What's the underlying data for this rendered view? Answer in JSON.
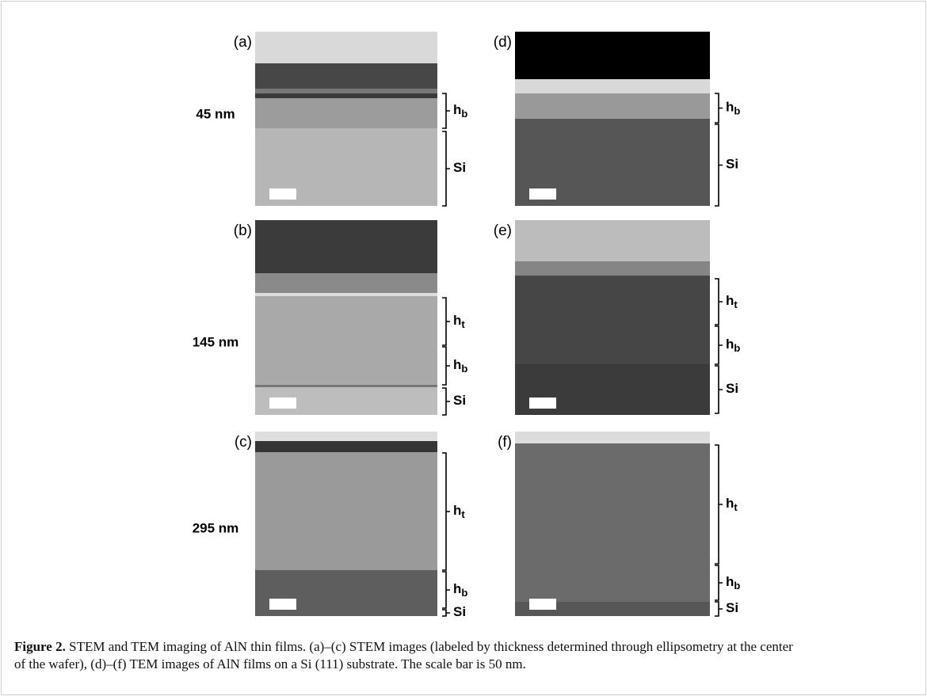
{
  "figure": {
    "panels": [
      {
        "label": "(a)",
        "thickness": "45 nm",
        "layers": [
          {
            "name": "h",
            "sub": "b"
          },
          {
            "name": "Si"
          }
        ]
      },
      {
        "label": "(b)",
        "thickness": "145 nm",
        "layers": [
          {
            "name": "h",
            "sub": "t"
          },
          {
            "name": "h",
            "sub": "b"
          },
          {
            "name": "Si"
          }
        ]
      },
      {
        "label": "(c)",
        "thickness": "295 nm",
        "layers": [
          {
            "name": "h",
            "sub": "t"
          },
          {
            "name": "h",
            "sub": "b"
          },
          {
            "name": "Si"
          }
        ]
      },
      {
        "label": "(d)",
        "layers": [
          {
            "name": "h",
            "sub": "b"
          },
          {
            "name": "Si"
          }
        ]
      },
      {
        "label": "(e)",
        "layers": [
          {
            "name": "h",
            "sub": "t"
          },
          {
            "name": "h",
            "sub": "b"
          },
          {
            "name": "Si"
          }
        ]
      },
      {
        "label": "(f)",
        "layers": [
          {
            "name": "h",
            "sub": "t"
          },
          {
            "name": "h",
            "sub": "b"
          },
          {
            "name": "Si"
          }
        ]
      }
    ],
    "caption": {
      "label": "Figure 2.",
      "text": "STEM and TEM imaging of AlN thin films. (a)–(c) STEM images (labeled by thickness determined through ellipsometry at the center of the wafer), (d)–(f) TEM images of AlN films on a Si (111) substrate. The scale bar is 50 nm."
    }
  }
}
